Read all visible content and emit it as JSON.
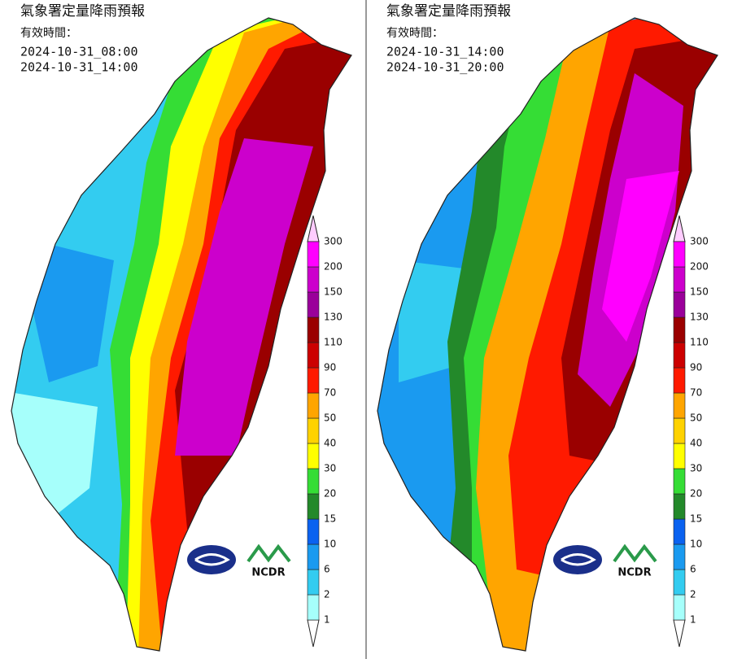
{
  "panels": [
    {
      "title": "氣象署定量降雨預報",
      "subtitle": "有效時間：",
      "start": "2024-10-31_08:00",
      "end": "2024-10-31_14:00"
    },
    {
      "title": "氣象署定量降雨預報",
      "subtitle": "有效時間：",
      "start": "2024-10-31_14:00",
      "end": "2024-10-31_20:00"
    }
  ],
  "legend": {
    "levels": [
      1,
      2,
      6,
      10,
      15,
      20,
      30,
      40,
      50,
      70,
      90,
      110,
      130,
      150,
      200,
      300
    ],
    "colors": [
      "#ffffff",
      "#a6fffb",
      "#33ccf0",
      "#1a9af0",
      "#0a62f0",
      "#23892a",
      "#35dd35",
      "#ffff00",
      "#ffd200",
      "#ffa500",
      "#ff1a00",
      "#cc0000",
      "#9a0000",
      "#9a009a",
      "#cc00cc",
      "#ff00ff",
      "#ffccff"
    ]
  },
  "logo": {
    "text": "NCDR"
  }
}
